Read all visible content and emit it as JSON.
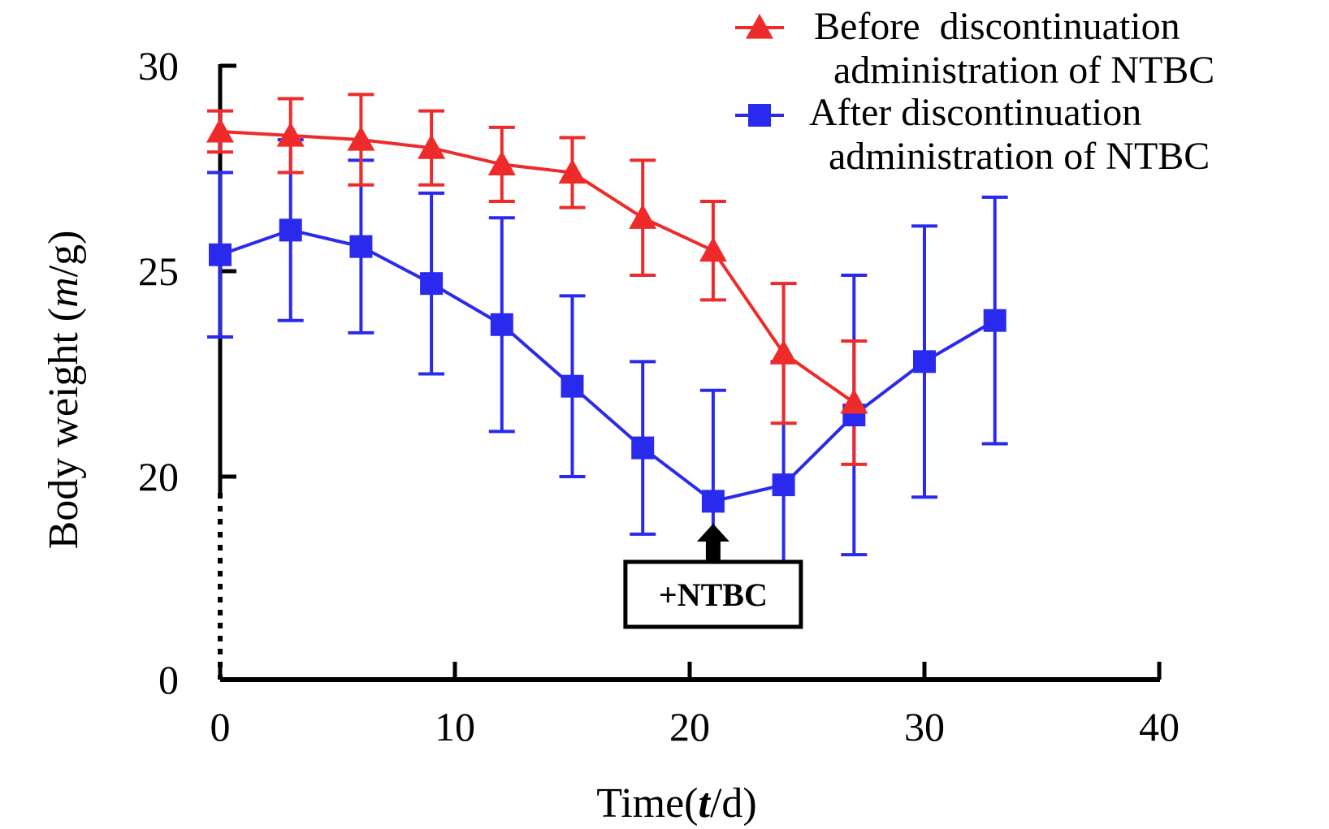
{
  "chart_data": {
    "type": "line",
    "title": "",
    "xlabel": {
      "prefix": "Time(",
      "var": "t",
      "suffix": "/d)"
    },
    "ylabel": {
      "prefix": "Body weight (",
      "var": "m",
      "suffix": "/g)"
    },
    "xlim": [
      0,
      40
    ],
    "ylim": [
      0,
      30
    ],
    "y_axis_break": true,
    "x_ticks": [
      0,
      10,
      20,
      30,
      40
    ],
    "y_ticks": [
      0,
      20,
      25,
      30
    ],
    "grid": false,
    "legend_position": "top-right",
    "series": [
      {
        "name": "Before discontinuation administration of NTBC",
        "legend_lines": [
          "Before  discontinuation",
          "administration of NTBC"
        ],
        "color": "#ee2a2a",
        "marker": "triangle",
        "x": [
          0,
          3,
          6,
          9,
          12,
          15,
          18,
          21,
          24,
          27
        ],
        "y": [
          28.4,
          28.3,
          28.2,
          28.0,
          27.6,
          27.4,
          26.3,
          25.5,
          23.0,
          21.8
        ],
        "err": [
          0.5,
          0.9,
          1.1,
          0.9,
          0.9,
          0.85,
          1.4,
          1.2,
          1.7,
          1.5
        ]
      },
      {
        "name": "After discontinuation administration of NTBC",
        "legend_lines": [
          "After discontinuation",
          "administration of NTBC"
        ],
        "color": "#2a2aee",
        "marker": "square",
        "x": [
          0,
          3,
          6,
          9,
          12,
          15,
          18,
          21,
          24,
          27,
          30,
          33
        ],
        "y": [
          25.4,
          26.0,
          25.6,
          24.7,
          23.7,
          22.2,
          20.7,
          19.4,
          19.8,
          21.5,
          22.8,
          23.8
        ],
        "err": [
          2.0,
          2.2,
          2.1,
          2.2,
          2.6,
          2.2,
          2.1,
          2.7,
          3.0,
          3.4,
          3.3,
          3.0
        ]
      }
    ],
    "annotations": [
      {
        "text": "+NTBC",
        "x": 21
      }
    ]
  }
}
